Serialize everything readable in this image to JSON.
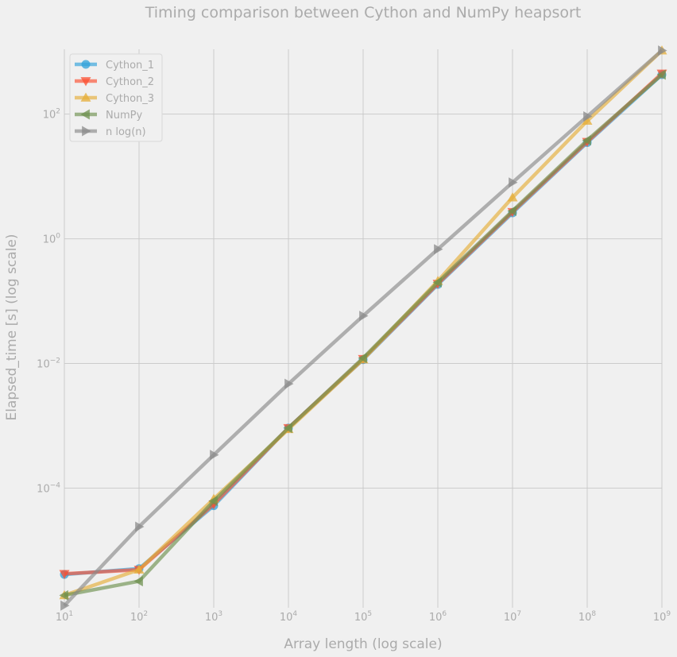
{
  "chart_data": {
    "type": "line",
    "title": "Timing comparison between Cython and NumPy heapsort",
    "xlabel": "Array length (log scale)",
    "ylabel": "Elapsed_time [s] (log scale)",
    "x_scale": "log",
    "y_scale": "log",
    "x": [
      10,
      100,
      1000,
      10000,
      100000,
      1000000,
      10000000,
      100000000,
      1000000000
    ],
    "xlim": [
      10,
      1000000000
    ],
    "ylim": [
      1.2e-06,
      1100
    ],
    "x_ticks": [
      {
        "base": "10",
        "exp": "1",
        "value": 10
      },
      {
        "base": "10",
        "exp": "2",
        "value": 100
      },
      {
        "base": "10",
        "exp": "3",
        "value": 1000
      },
      {
        "base": "10",
        "exp": "4",
        "value": 10000
      },
      {
        "base": "10",
        "exp": "5",
        "value": 100000
      },
      {
        "base": "10",
        "exp": "6",
        "value": 1000000
      },
      {
        "base": "10",
        "exp": "7",
        "value": 10000000
      },
      {
        "base": "10",
        "exp": "8",
        "value": 100000000
      },
      {
        "base": "10",
        "exp": "9",
        "value": 1000000000
      }
    ],
    "y_ticks": [
      {
        "base": "10",
        "exp": "−4",
        "value": 0.0001
      },
      {
        "base": "10",
        "exp": "−2",
        "value": 0.01
      },
      {
        "base": "10",
        "exp": "0",
        "value": 1
      },
      {
        "base": "10",
        "exp": "2",
        "value": 100
      }
    ],
    "grid": true,
    "legend_position": "top-left",
    "series": [
      {
        "name": "Cython_1",
        "color": "#30a2da",
        "marker": "circle",
        "values": [
          4.1e-06,
          5.1e-06,
          5.2e-05,
          0.00092,
          0.0115,
          0.185,
          2.6,
          35,
          430
        ]
      },
      {
        "name": "Cython_2",
        "color": "#fc4f30",
        "marker": "triangle-down",
        "values": [
          4.2e-06,
          4.9e-06,
          5.5e-05,
          0.00092,
          0.0118,
          0.19,
          2.7,
          36,
          450
        ]
      },
      {
        "name": "Cython_3",
        "color": "#e5ae38",
        "marker": "triangle-up",
        "values": [
          1.9e-06,
          4.9e-06,
          6.7e-05,
          0.00088,
          0.0116,
          0.21,
          4.6,
          78,
          1050
        ]
      },
      {
        "name": "NumPy",
        "color": "#6d904f",
        "marker": "triangle-left",
        "values": [
          1.9e-06,
          3.2e-06,
          6.2e-05,
          0.00092,
          0.0122,
          0.2,
          2.8,
          38,
          430
        ]
      },
      {
        "name": "n log(n)",
        "color": "#8b8b8b",
        "marker": "triangle-right",
        "values": [
          1.3e-06,
          2.4e-05,
          0.00034,
          0.0047,
          0.058,
          0.68,
          8.0,
          92,
          1050
        ]
      }
    ]
  }
}
